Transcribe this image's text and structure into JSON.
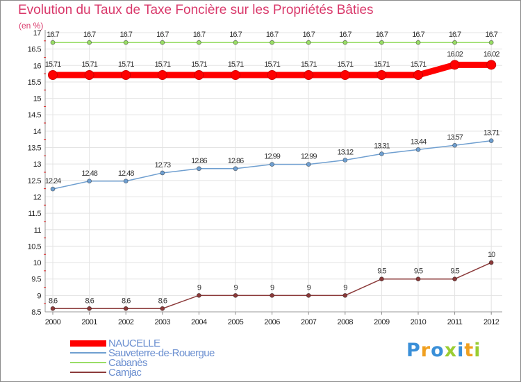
{
  "chart_data": {
    "type": "line",
    "title": "Evolution du Taux de Taxe Foncière sur les Propriétés Bâties",
    "ylabel": "(en %)",
    "xlabel": "",
    "categories": [
      "2000",
      "2001",
      "2002",
      "2003",
      "2004",
      "2005",
      "2006",
      "2007",
      "2008",
      "2009",
      "2010",
      "2011",
      "2012"
    ],
    "ylim": [
      8.5,
      17
    ],
    "yticks": [
      "8.5",
      "9",
      "9.5",
      "10",
      "10.5",
      "11",
      "11.5",
      "12",
      "12.5",
      "13",
      "13.5",
      "14",
      "14.5",
      "15",
      "15.5",
      "16",
      "16.5",
      "17"
    ],
    "grid": true,
    "series": [
      {
        "name": "NAUCELLE",
        "color": "#ff0000",
        "values": [
          15.71,
          15.71,
          15.71,
          15.71,
          15.71,
          15.71,
          15.71,
          15.71,
          15.71,
          15.71,
          15.71,
          16.02,
          16.02
        ],
        "labels": [
          "15.71",
          "15.71",
          "15.71",
          "15.71",
          "15.71",
          "15.71",
          "15.71",
          "15.71",
          "15.71",
          "15.71",
          "15.71",
          "16.02",
          "16.02"
        ]
      },
      {
        "name": "Sauveterre-de-Rouergue",
        "color": "#6f9fd0",
        "values": [
          12.24,
          12.48,
          12.48,
          12.73,
          12.86,
          12.86,
          12.99,
          12.99,
          13.12,
          13.31,
          13.44,
          13.57,
          13.71
        ],
        "labels": [
          "12.24",
          "12.48",
          "12.48",
          "12.73",
          "12.86",
          "12.86",
          "12.99",
          "12.99",
          "13.12",
          "13.31",
          "13.44",
          "13.57",
          "13.71"
        ]
      },
      {
        "name": "Cabanès",
        "color": "#99dd66",
        "values": [
          16.7,
          16.7,
          16.7,
          16.7,
          16.7,
          16.7,
          16.7,
          16.7,
          16.7,
          16.7,
          16.7,
          16.7,
          16.7
        ],
        "labels": [
          "16.7",
          "16.7",
          "16.7",
          "16.7",
          "16.7",
          "16.7",
          "16.7",
          "16.7",
          "16.7",
          "16.7",
          "16.7",
          "16.7",
          "16.7"
        ]
      },
      {
        "name": "Camjac",
        "color": "#8b3a3a",
        "values": [
          8.6,
          8.6,
          8.6,
          8.6,
          9,
          9,
          9,
          9,
          9,
          9.5,
          9.5,
          9.5,
          10
        ],
        "labels": [
          "8.6",
          "8.6",
          "8.6",
          "8.6",
          "9",
          "9",
          "9",
          "9",
          "9",
          "9.5",
          "9.5",
          "9.5",
          "10"
        ]
      }
    ]
  },
  "brand": {
    "letters": [
      "P",
      "r",
      "o",
      "x",
      "i",
      "t",
      "i"
    ],
    "colors": [
      "#3a8fd8",
      "#f0a020",
      "#3a8fd8",
      "#9acd32",
      "#3a8fd8",
      "#f0a020",
      "#9acd32"
    ]
  }
}
